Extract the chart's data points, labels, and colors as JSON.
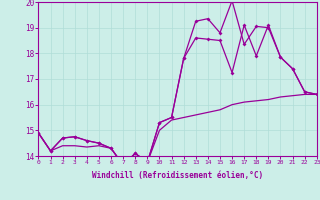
{
  "xlabel": "Windchill (Refroidissement éolien,°C)",
  "bg_color": "#cceee8",
  "line_color": "#990099",
  "grid_color": "#b0ddd8",
  "xmin": 0,
  "xmax": 23,
  "ymin": 14,
  "ymax": 20,
  "line1_y": [
    14.9,
    14.2,
    14.7,
    14.75,
    14.6,
    14.5,
    14.3,
    13.65,
    14.1,
    13.75,
    15.3,
    15.5,
    17.8,
    18.6,
    18.55,
    18.5,
    17.25,
    19.1,
    17.9,
    19.1,
    17.85,
    17.4,
    16.5,
    16.4
  ],
  "line2_y": [
    14.9,
    14.2,
    14.7,
    14.75,
    14.6,
    14.5,
    14.3,
    13.65,
    14.1,
    13.75,
    15.3,
    15.5,
    17.8,
    19.25,
    19.35,
    18.8,
    20.05,
    18.35,
    19.05,
    19.0,
    17.85,
    17.4,
    16.5,
    16.4
  ],
  "line3_y": [
    14.9,
    14.2,
    14.4,
    14.4,
    14.35,
    14.4,
    14.3,
    13.65,
    14.1,
    13.75,
    15.0,
    15.4,
    15.5,
    15.6,
    15.7,
    15.8,
    16.0,
    16.1,
    16.15,
    16.2,
    16.3,
    16.35,
    16.4,
    16.4
  ]
}
